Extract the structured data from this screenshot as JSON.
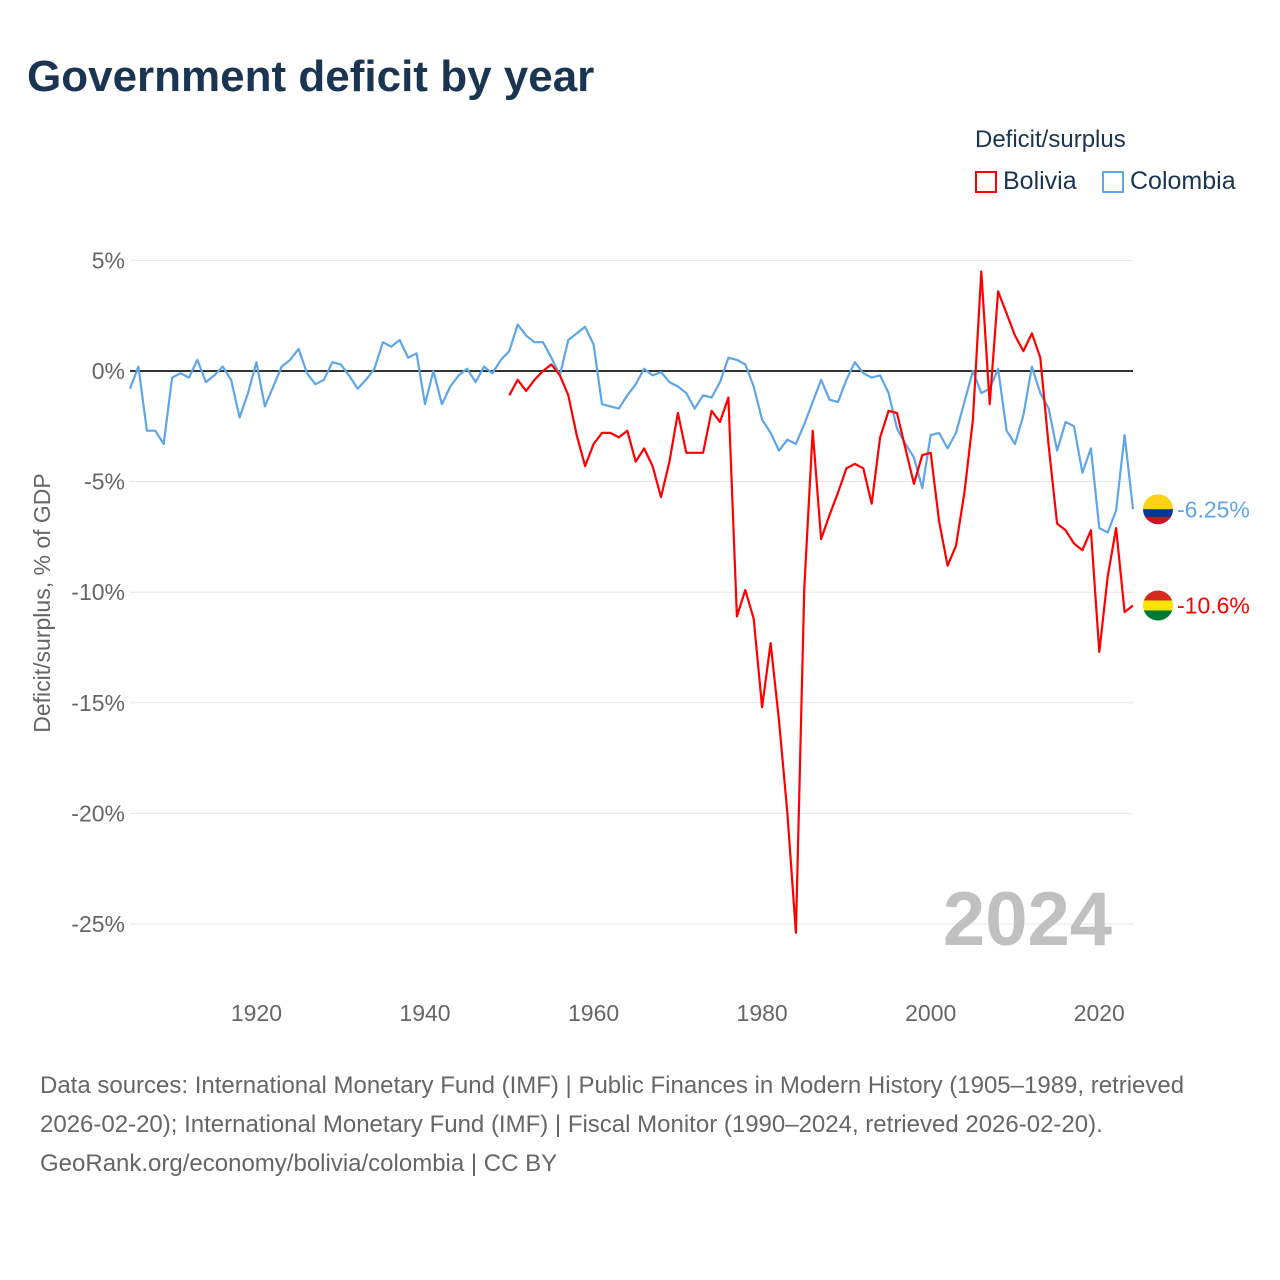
{
  "title": "Government deficit by year",
  "legend": {
    "title": "Deficit/surplus",
    "items": [
      {
        "label": "Bolivia",
        "color": "#ff0000"
      },
      {
        "label": "Colombia",
        "color": "#5ea6e8"
      }
    ]
  },
  "chart_data": {
    "type": "line",
    "title": "Government deficit by year",
    "ylabel": "Deficit/surplus, % of GDP",
    "xlabel": "",
    "ylim": [
      -27,
      5
    ],
    "xlim": [
      1905,
      2024
    ],
    "yticks": [
      5,
      0,
      -5,
      -10,
      -15,
      -20,
      -25
    ],
    "ytick_labels": [
      "5%",
      "0%",
      "-5%",
      "-10%",
      "-15%",
      "-20%",
      "-25%"
    ],
    "xticks": [
      1920,
      1940,
      1960,
      1980,
      2000,
      2020
    ],
    "xtick_labels": [
      "1920",
      "1940",
      "1960",
      "1980",
      "2000",
      "2020"
    ],
    "watermark_year": "2024",
    "series": [
      {
        "name": "Colombia",
        "color": "#5ea6e8",
        "start_year": 1905,
        "end_label": "-6.25%",
        "values": [
          -0.8,
          0.2,
          -2.7,
          -2.7,
          -3.3,
          -0.3,
          -0.1,
          -0.3,
          0.5,
          -0.5,
          -0.2,
          0.2,
          -0.4,
          -2.1,
          -1.0,
          0.4,
          -1.6,
          -0.7,
          0.2,
          0.5,
          1.0,
          -0.1,
          -0.6,
          -0.4,
          0.4,
          0.3,
          -0.2,
          -0.8,
          -0.4,
          0.1,
          1.3,
          1.1,
          1.4,
          0.6,
          0.8,
          -1.5,
          0.0,
          -1.5,
          -0.7,
          -0.2,
          0.1,
          -0.5,
          0.2,
          -0.1,
          0.5,
          0.9,
          2.1,
          1.6,
          1.3,
          1.3,
          0.6,
          -0.2,
          1.4,
          1.7,
          2.0,
          1.2,
          -1.5,
          -1.6,
          -1.7,
          -1.1,
          -0.6,
          0.1,
          -0.2,
          -0.05,
          -0.5,
          -0.7,
          -1.0,
          -1.7,
          -1.1,
          -1.2,
          -0.5,
          0.6,
          0.5,
          0.3,
          -0.7,
          -2.2,
          -2.8,
          -3.6,
          -3.1,
          -3.3,
          -2.4,
          -1.4,
          -0.4,
          -1.3,
          -1.4,
          -0.4,
          0.4,
          -0.1,
          -0.3,
          -0.2,
          -1.0,
          -2.6,
          -3.3,
          -3.9,
          -5.3,
          -2.9,
          -2.8,
          -3.5,
          -2.8,
          -1.4,
          0.0,
          -1.0,
          -0.8,
          0.1,
          -2.7,
          -3.3,
          -2.0,
          0.2,
          -1.0,
          -1.7,
          -3.6,
          -2.3,
          -2.5,
          -4.6,
          -3.5,
          -7.1,
          -7.3,
          -6.3,
          -2.9,
          -6.25
        ]
      },
      {
        "name": "Bolivia",
        "color": "#ff0000",
        "start_year": 1950,
        "end_label": "-10.6%",
        "values": [
          -1.1,
          -0.4,
          -0.9,
          -0.4,
          0.0,
          0.3,
          -0.2,
          -1.1,
          -2.9,
          -4.3,
          -3.3,
          -2.8,
          -2.8,
          -3.0,
          -2.7,
          -4.1,
          -3.5,
          -4.3,
          -5.7,
          -4.1,
          -1.9,
          -3.7,
          -3.7,
          -3.7,
          -1.8,
          -2.3,
          -1.2,
          -11.1,
          -9.9,
          -11.2,
          -15.2,
          -12.3,
          -15.8,
          -20.0,
          -25.4,
          -9.8,
          -2.7,
          -7.6,
          -6.5,
          -5.5,
          -4.4,
          -4.2,
          -4.4,
          -6.0,
          -3.0,
          -1.8,
          -1.9,
          -3.5,
          -5.1,
          -3.8,
          -3.7,
          -6.8,
          -8.8,
          -7.9,
          -5.5,
          -2.2,
          4.5,
          -1.5,
          3.6,
          2.6,
          1.6,
          0.9,
          1.7,
          0.6,
          -3.4,
          -6.9,
          -7.2,
          -7.8,
          -8.1,
          -7.2,
          -12.7,
          -9.3,
          -7.1,
          -10.9,
          -10.6
        ]
      }
    ]
  },
  "footer": {
    "sources": "Data sources: International Monetary Fund (IMF) | Public Finances in Modern History (1905–1989, retrieved 2026-02-20); International Monetary Fund (IMF) | Fiscal Monitor (1990–2024, retrieved 2026-02-20).",
    "credit": "GeoRank.org/economy/bolivia/colombia | CC BY"
  }
}
